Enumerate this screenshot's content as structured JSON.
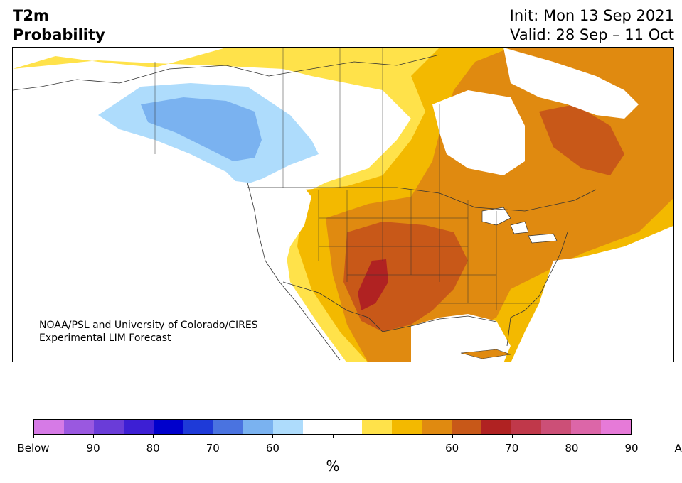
{
  "header": {
    "title_line1": "T2m",
    "title_line2": "Probability",
    "init": "Init: Mon 13 Sep 2021",
    "valid": "Valid: 28 Sep – 11 Oct"
  },
  "credit": {
    "line1": "NOAA/PSL and University of Colorado/CIRES",
    "line2": "Experimental LIM Forecast"
  },
  "colorbar": {
    "colors": [
      "#d67ae6",
      "#9a58e0",
      "#6a3cd8",
      "#3d1fd4",
      "#0000cc",
      "#1e3ad8",
      "#4a73e0",
      "#7ab2f0",
      "#aedcfc",
      "#ffffff",
      "#ffffff",
      "#ffe24a",
      "#f3b900",
      "#e08a10",
      "#c85818",
      "#b02222",
      "#c0384a",
      "#cc4f77",
      "#dc66a8",
      "#e67ad8"
    ],
    "labels": [
      "Below",
      "90",
      "80",
      "70",
      "60",
      "",
      "",
      "60",
      "70",
      "80",
      "90",
      "Above"
    ],
    "unit": "%"
  },
  "map": {
    "colors": {
      "land_neutral": "#ffffff",
      "above_55": "#ffe24a",
      "above_60": "#f3b900",
      "above_65": "#e08a10",
      "above_70": "#c85818",
      "above_75": "#b02222",
      "below_55": "#aedcfc",
      "below_60": "#7ab2f0"
    }
  }
}
